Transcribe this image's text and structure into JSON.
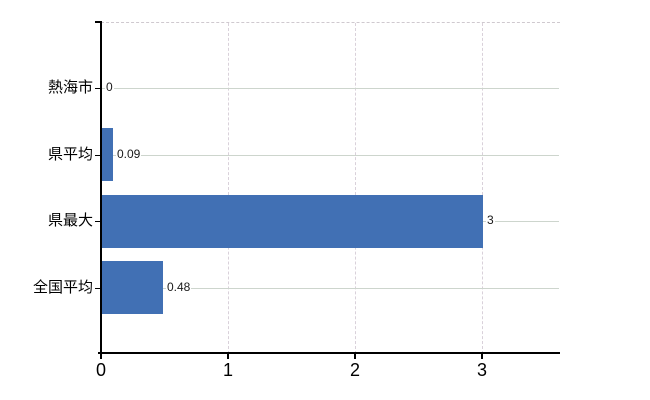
{
  "chart_data": {
    "type": "bar",
    "orientation": "horizontal",
    "categories": [
      "熱海市",
      "県平均",
      "県最大",
      "全国平均"
    ],
    "values": [
      0,
      0.09,
      3,
      0.48
    ],
    "value_labels": [
      "0",
      "0.09",
      "3",
      "0.48"
    ],
    "xtick_labels": [
      "0",
      "1",
      "2",
      "3"
    ],
    "xtick_values": [
      0,
      1,
      2,
      3
    ],
    "xlim": [
      0,
      3.61
    ],
    "grid": {
      "horizontal": "solid",
      "vertical": "dashed",
      "top_border": "dashed"
    },
    "colors": {
      "bar": "#4170b4",
      "h_gridline": "#cdd5cd",
      "v_gridline": "#d9d1da",
      "top_border": "#cfc9cf",
      "axis": "#000000",
      "category_text": "#000000",
      "value_text": "#1a1a1a",
      "tick_text": "#000000",
      "background": "#ffffff"
    }
  }
}
